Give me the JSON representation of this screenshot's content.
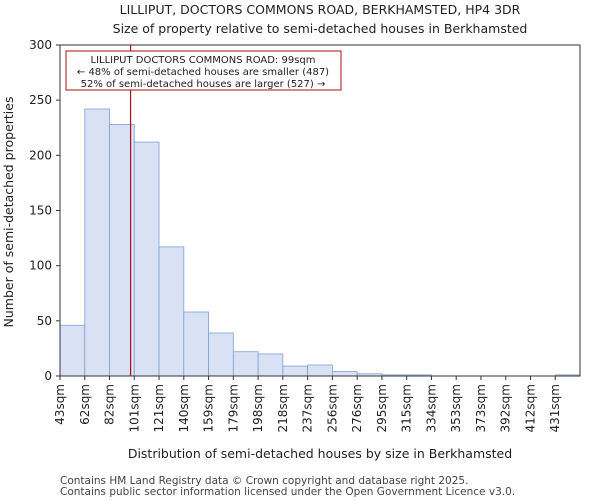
{
  "chart_data": {
    "type": "bar",
    "title": "LILLIPUT, DOCTORS COMMONS ROAD, BERKHAMSTED, HP4 3DR",
    "subtitle": "Size of property relative to semi-detached houses in Berkhamsted",
    "xlabel": "Distribution of semi-detached houses by size in Berkhamsted",
    "ylabel": "Number of semi-detached properties",
    "categories": [
      "43sqm",
      "62sqm",
      "82sqm",
      "101sqm",
      "121sqm",
      "140sqm",
      "159sqm",
      "179sqm",
      "198sqm",
      "218sqm",
      "237sqm",
      "256sqm",
      "276sqm",
      "295sqm",
      "315sqm",
      "334sqm",
      "353sqm",
      "373sqm",
      "392sqm",
      "412sqm",
      "431sqm"
    ],
    "values": [
      46,
      242,
      228,
      212,
      117,
      58,
      39,
      22,
      20,
      9,
      10,
      4,
      2,
      1,
      1,
      0,
      0,
      0,
      0,
      0,
      1
    ],
    "ylim": [
      0,
      300
    ],
    "yticks": [
      0,
      50,
      100,
      150,
      200,
      250,
      300
    ],
    "bar_color": "#d9e2f5",
    "bar_edge": "#7f9fd4",
    "marker": {
      "value_index": 2.85,
      "color": "#aa1111",
      "label_line1": "LILLIPUT DOCTORS COMMONS ROAD: 99sqm",
      "label_line2": "← 48% of semi-detached houses are smaller (487)",
      "label_line3": "52% of semi-detached houses are larger (527) →"
    }
  },
  "footer": {
    "line1": "Contains HM Land Registry data © Crown copyright and database right 2025.",
    "line2": "Contains public sector information licensed under the Open Government Licence v3.0."
  }
}
